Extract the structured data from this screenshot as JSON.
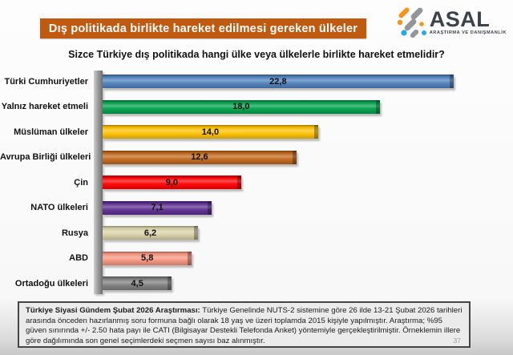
{
  "header": {
    "title": "Dış politikada birlikte hareket edilmesi gereken ülkeler",
    "banner_color": "#c05a10"
  },
  "logo": {
    "name": "ASAL",
    "subtitle": "ARAŞTIRMA VE DANIŞMANLIK",
    "icon_colors": {
      "orange": "#f7941e",
      "gray": "#939598",
      "blue": "#27aae1"
    }
  },
  "question": "Sizce Türkiye dış politikada hangi ülke veya ülkelerle birlikte hareket etmelidir?",
  "chart_data": {
    "type": "bar",
    "orientation": "horizontal",
    "title": "Dış politikada birlikte hareket edilmesi gereken ülkeler",
    "categories": [
      "Türki Cumhuriyetler",
      "Yalnız hareket etmeli",
      "Müslüman ülkeler",
      "Avrupa Birliği ülkeleri",
      "Çin",
      "NATO ülkeleri",
      "Rusya",
      "ABD",
      "Ortadoğu ülkeleri"
    ],
    "values": [
      22.8,
      18.0,
      14.0,
      12.6,
      9.0,
      7.1,
      6.2,
      5.8,
      4.5
    ],
    "value_labels": [
      "22,8",
      "18,0",
      "14,0",
      "12,6",
      "9,0",
      "7,1",
      "6,2",
      "5,8",
      "4,5"
    ],
    "colors": [
      "#4f81bd",
      "#00a14b",
      "#ffc000",
      "#c0661a",
      "#ff0000",
      "#5c2d91",
      "#d9d3a7",
      "#f79580",
      "#7f7f7f"
    ],
    "xlim": [
      0,
      25
    ],
    "grid": false,
    "legend": "none",
    "value_label_position": "center"
  },
  "footer": {
    "note_bold": "Türkiye Siyasi Gündem Şubat 2026 Araştırması:",
    "note_text": "Türkiye Genelinde NUTS-2 sistemine göre 26 ilde 13-21 Şubat 2026 tarihleri arasında önceden hazırlanmış soru formuna bağlı olarak 18 yaş ve üzeri toplamda 2015 kişiyle yapılmıştır. Araştırma; %95 güven sınırında +/- 2.50 hata payı ile CATI (Bilgisayar Destekli Telefonda Anket) yöntemiyle gerçekleştirilmiştir. Örneklemin illere göre dağılımında son genel seçimlerdeki seçmen sayısı baz alınmıştır.",
    "page_number": "37"
  }
}
